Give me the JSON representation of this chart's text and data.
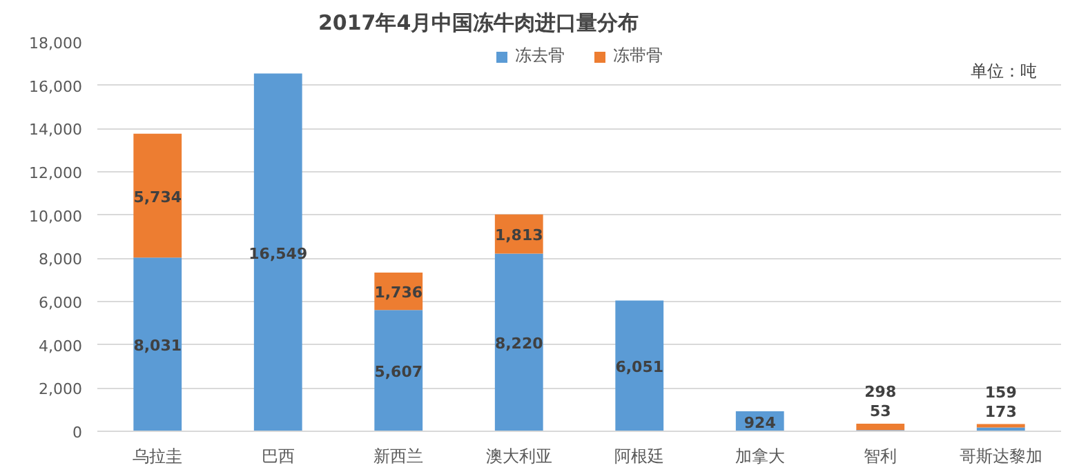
{
  "chart_data": {
    "type": "bar",
    "title": "2017年4月中国冻牛肉进口量分布",
    "annotations": [
      "单位：吨"
    ],
    "categories": [
      "乌拉圭",
      "巴西",
      "新西兰",
      "澳大利亚",
      "阿根廷",
      "加拿大",
      "智利",
      "哥斯达黎加"
    ],
    "stacked": true,
    "series": [
      {
        "name": "冻去骨",
        "color": "#5b9bd5",
        "values": [
          8031,
          16549,
          5607,
          8220,
          6051,
          924,
          53,
          173
        ],
        "value_labels": [
          "8,031",
          "16,549",
          "5,607",
          "8,220",
          "6,051",
          "924",
          "53",
          "173"
        ]
      },
      {
        "name": "冻带骨",
        "color": "#ed7d31",
        "values": [
          5734,
          null,
          1736,
          1813,
          null,
          null,
          298,
          159
        ],
        "value_labels": [
          "5,734",
          null,
          "1,736",
          "1,813",
          null,
          null,
          "298",
          "159"
        ]
      }
    ],
    "ylim": [
      0,
      18000
    ],
    "yticks": [
      {
        "value": 0,
        "label": "0"
      },
      {
        "value": 2000,
        "label": "2,000"
      },
      {
        "value": 4000,
        "label": "4,000"
      },
      {
        "value": 6000,
        "label": "6,000"
      },
      {
        "value": 8000,
        "label": "8,000"
      },
      {
        "value": 10000,
        "label": "10,000"
      },
      {
        "value": 12000,
        "label": "12,000"
      },
      {
        "value": 14000,
        "label": "14,000"
      },
      {
        "value": 16000,
        "label": "16,000"
      },
      {
        "value": 18000,
        "label": "18,000"
      }
    ],
    "grid": "y",
    "legend": "top"
  }
}
